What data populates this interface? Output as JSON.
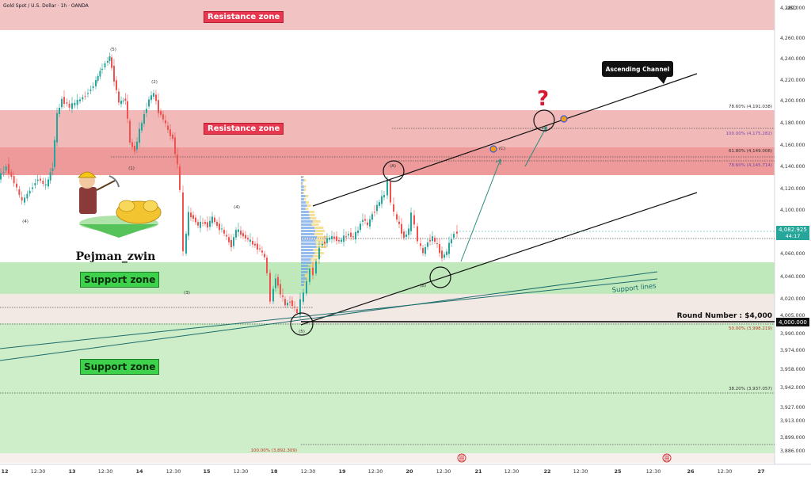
{
  "header": {
    "title": "Gold Spot / U.S. Dollar · 1h · OANDA"
  },
  "axis": {
    "currency": "USD"
  },
  "chart_data": {
    "type": "candlestick",
    "symbol": "Gold Spot / U.S. Dollar",
    "timeframe": "1h",
    "source": "OANDA",
    "price_axis": {
      "ticks": [
        "4,280.000",
        "4,260.000",
        "4,240.000",
        "4,220.000",
        "4,200.000",
        "4,180.000",
        "4,160.000",
        "4,140.000",
        "4,120.000",
        "4,100.000",
        "4,060.000",
        "4,040.000",
        "4,020.000",
        "4,005.000",
        "3,990.000",
        "3,974.000",
        "3,958.000",
        "3,942.000",
        "3,927.000",
        "3,913.000",
        "3,899.000",
        "3,886.000"
      ]
    },
    "time_axis": {
      "ticks": [
        "12",
        "12:30",
        "13",
        "12:30",
        "14",
        "12:30",
        "15",
        "12:30",
        "18",
        "12:30",
        "19",
        "12:30",
        "20",
        "12:30",
        "21",
        "12:30",
        "22",
        "12:30",
        "25",
        "12:30",
        "26",
        "12:30",
        "27"
      ]
    },
    "current_price": {
      "value": "4,082.925",
      "countdown": "44:17",
      "color": "#26a69a"
    },
    "round_number": {
      "label": "Round Number : $4,000",
      "value": "4,000.000"
    },
    "fib_levels": [
      {
        "label": "78.60% (4,191.038)"
      },
      {
        "label": "100.00% (4,175.282)"
      },
      {
        "label": "61.80% (4,149.006)"
      },
      {
        "label": "78.60% (4,145.714)"
      },
      {
        "label": "50.00% (3,998.219)"
      },
      {
        "label": "38.20% (3,937.057)"
      },
      {
        "label": "100.00% (3,892.309)"
      }
    ],
    "zones": [
      {
        "type": "resistance",
        "label": "Resistance zone"
      },
      {
        "type": "resistance",
        "label": "Resistance zone"
      },
      {
        "type": "support",
        "label": "Support zone"
      },
      {
        "type": "support",
        "label": "Support zone"
      }
    ],
    "annotations": {
      "channel": "Ascending Channel",
      "support_lines": "Support lines",
      "question": "?",
      "author": "Pejman_zwin",
      "waves": [
        "(5)",
        "(2)",
        "(1)",
        "(4)",
        "(3)",
        "(4)",
        "(A)",
        "(B)",
        "(5)",
        "(C)"
      ]
    },
    "colors": {
      "up": "#26a69a",
      "down": "#ef5350",
      "resistance": "#f0b7bf",
      "support": "#b9e6b4"
    }
  }
}
